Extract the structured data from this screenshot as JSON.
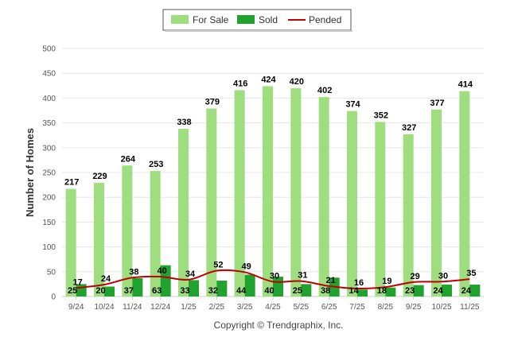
{
  "chart_data": {
    "type": "bar",
    "title": "",
    "ylabel": "Number of Homes",
    "xlabel": "",
    "ylim": [
      0,
      500
    ],
    "yticks": [
      0,
      50,
      100,
      150,
      200,
      250,
      300,
      350,
      400,
      450,
      500
    ],
    "grid": true,
    "legend_position": "top-center",
    "categories": [
      "9/24",
      "10/24",
      "11/24",
      "12/24",
      "1/25",
      "2/25",
      "3/25",
      "4/25",
      "5/25",
      "6/25",
      "7/25",
      "8/25",
      "9/25",
      "10/25",
      "11/25"
    ],
    "series": [
      {
        "name": "For Sale",
        "kind": "bar",
        "color": "#9ede7f",
        "values": [
          217,
          229,
          264,
          253,
          338,
          379,
          416,
          424,
          420,
          402,
          374,
          352,
          327,
          377,
          414
        ]
      },
      {
        "name": "Sold",
        "kind": "bar",
        "color": "#1fa22e",
        "values": [
          25,
          20,
          37,
          63,
          33,
          32,
          44,
          40,
          25,
          38,
          14,
          18,
          23,
          24,
          24
        ]
      },
      {
        "name": "Pended",
        "kind": "line",
        "color": "#c00000",
        "values": [
          17,
          24,
          38,
          40,
          34,
          52,
          49,
          30,
          31,
          21,
          16,
          19,
          29,
          30,
          35
        ]
      }
    ]
  },
  "footer": {
    "copyright": "Copyright © Trendgraphix, Inc."
  }
}
